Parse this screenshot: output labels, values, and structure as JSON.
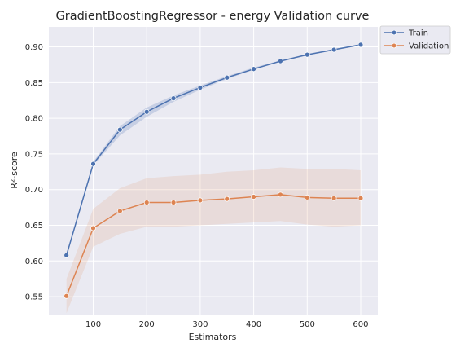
{
  "chart_data": {
    "type": "line",
    "title": "GradientBoostingRegressor - energy Validation curve",
    "xlabel": "Estimators",
    "ylabel": "R²-score",
    "x": [
      50,
      100,
      150,
      200,
      250,
      300,
      350,
      400,
      450,
      500,
      550,
      600
    ],
    "xlim": [
      17,
      632
    ],
    "ylim": [
      0.525,
      0.928
    ],
    "xticks": [
      100,
      200,
      300,
      400,
      500,
      600
    ],
    "yticks": [
      0.55,
      0.6,
      0.65,
      0.7,
      0.75,
      0.8,
      0.85,
      0.9
    ],
    "ytick_labels": [
      "0.55",
      "0.60",
      "0.65",
      "0.70",
      "0.75",
      "0.80",
      "0.85",
      "0.90"
    ],
    "grid": true,
    "legend_position": "outside-top-right",
    "background": "#eaeaf2",
    "series": [
      {
        "name": "Train",
        "color": "#4c72b0",
        "values": [
          0.608,
          0.736,
          0.784,
          0.809,
          0.828,
          0.843,
          0.857,
          0.869,
          0.88,
          0.889,
          0.896,
          0.903
        ],
        "lower": [
          0.606,
          0.734,
          0.776,
          0.802,
          0.823,
          0.84,
          0.855,
          0.868,
          0.879,
          0.888,
          0.895,
          0.902
        ],
        "upper": [
          0.61,
          0.739,
          0.789,
          0.815,
          0.832,
          0.846,
          0.859,
          0.871,
          0.881,
          0.89,
          0.897,
          0.904
        ]
      },
      {
        "name": "Validation",
        "color": "#dd8452",
        "values": [
          0.551,
          0.646,
          0.67,
          0.682,
          0.682,
          0.685,
          0.687,
          0.69,
          0.693,
          0.689,
          0.688,
          0.688
        ],
        "lower": [
          0.527,
          0.62,
          0.638,
          0.648,
          0.648,
          0.65,
          0.652,
          0.654,
          0.656,
          0.651,
          0.648,
          0.65
        ],
        "upper": [
          0.575,
          0.673,
          0.702,
          0.716,
          0.719,
          0.721,
          0.725,
          0.727,
          0.731,
          0.729,
          0.729,
          0.727
        ]
      }
    ]
  }
}
